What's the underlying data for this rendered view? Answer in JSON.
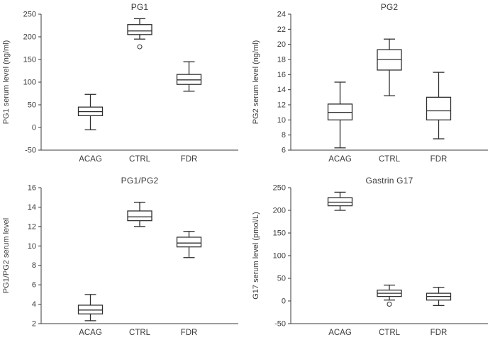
{
  "style": {
    "axis_color": "#3b3b3b",
    "box_stroke": "#2f2f2f",
    "box_fill": "#ffffff",
    "background": "#ffffff"
  },
  "chart_data": [
    {
      "type": "box",
      "title": "PG1",
      "ylabel": "PG1 serum level (ng/ml)",
      "ylim": [
        -50,
        250
      ],
      "ytick_step": 50,
      "grid": false,
      "categories": [
        "ACAG",
        "CTRL",
        "FDR"
      ],
      "series": [
        {
          "category": "ACAG",
          "low": -5,
          "q1": 26,
          "median": 35,
          "q3": 45,
          "high": 73,
          "outliers": []
        },
        {
          "category": "CTRL",
          "low": 195,
          "q1": 205,
          "median": 213,
          "q3": 227,
          "high": 240,
          "outliers": [
            178
          ]
        },
        {
          "category": "FDR",
          "low": 80,
          "q1": 95,
          "median": 105,
          "q3": 117,
          "high": 145,
          "outliers": []
        }
      ]
    },
    {
      "type": "box",
      "title": "PG2",
      "ylabel": "PG2 serum level (ng/ml)",
      "ylim": [
        6,
        24
      ],
      "ytick_step": 2,
      "grid": false,
      "categories": [
        "ACAG",
        "CTRL",
        "FDR"
      ],
      "series": [
        {
          "category": "ACAG",
          "low": 6.3,
          "q1": 10,
          "median": 11,
          "q3": 12.1,
          "high": 15,
          "outliers": []
        },
        {
          "category": "CTRL",
          "low": 13.2,
          "q1": 16.6,
          "median": 18,
          "q3": 19.3,
          "high": 20.7,
          "outliers": []
        },
        {
          "category": "FDR",
          "low": 7.5,
          "q1": 10,
          "median": 11.2,
          "q3": 13,
          "high": 16.3,
          "outliers": []
        }
      ]
    },
    {
      "type": "box",
      "title": "PG1/PG2",
      "ylabel": "PG1/PG2 serum level",
      "ylim": [
        2,
        16
      ],
      "ytick_step": 2,
      "grid": false,
      "categories": [
        "ACAG",
        "CTRL",
        "FDR"
      ],
      "series": [
        {
          "category": "ACAG",
          "low": 2.3,
          "q1": 3.0,
          "median": 3.4,
          "q3": 3.9,
          "high": 5.0,
          "outliers": []
        },
        {
          "category": "CTRL",
          "low": 12.0,
          "q1": 12.6,
          "median": 13.0,
          "q3": 13.6,
          "high": 14.5,
          "outliers": []
        },
        {
          "category": "FDR",
          "low": 8.8,
          "q1": 9.9,
          "median": 10.3,
          "q3": 10.9,
          "high": 11.5,
          "outliers": []
        }
      ]
    },
    {
      "type": "box",
      "title": "Gastrin G17",
      "ylabel": "G17 serum level (pmol/L)",
      "ylim": [
        -50,
        250
      ],
      "ytick_step": 50,
      "grid": false,
      "categories": [
        "ACAG",
        "CTRL",
        "FDR"
      ],
      "series": [
        {
          "category": "ACAG",
          "low": 200,
          "q1": 210,
          "median": 218,
          "q3": 228,
          "high": 240,
          "outliers": []
        },
        {
          "category": "CTRL",
          "low": 2,
          "q1": 10,
          "median": 17,
          "q3": 24,
          "high": 35,
          "outliers": [
            -7
          ]
        },
        {
          "category": "FDR",
          "low": -10,
          "q1": 2,
          "median": 10,
          "q3": 17,
          "high": 30,
          "outliers": []
        }
      ]
    }
  ]
}
